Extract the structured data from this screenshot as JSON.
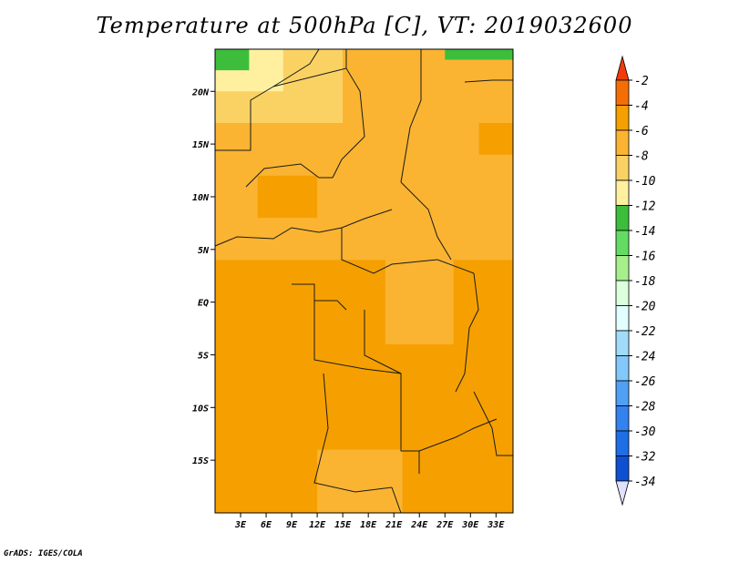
{
  "title": "Temperature at 500hPa [C], VT: 2019032600",
  "credit": "GrADS: IGES/COLA",
  "chart_data": {
    "type": "heatmap",
    "title": "Temperature at 500hPa [C], VT: 2019032600",
    "variable": "Temperature at 500hPa",
    "units": "C",
    "valid_time": "2019032600",
    "lon_range": [
      0,
      35
    ],
    "lat_range": [
      -20,
      24
    ],
    "x_ticks": [
      {
        "value": 3,
        "label": "3E"
      },
      {
        "value": 6,
        "label": "6E"
      },
      {
        "value": 9,
        "label": "9E"
      },
      {
        "value": 12,
        "label": "12E"
      },
      {
        "value": 15,
        "label": "15E"
      },
      {
        "value": 18,
        "label": "18E"
      },
      {
        "value": 21,
        "label": "21E"
      },
      {
        "value": 24,
        "label": "24E"
      },
      {
        "value": 27,
        "label": "27E"
      },
      {
        "value": 30,
        "label": "30E"
      },
      {
        "value": 33,
        "label": "33E"
      }
    ],
    "y_ticks": [
      {
        "value": 20,
        "label": "20N"
      },
      {
        "value": 15,
        "label": "15N"
      },
      {
        "value": 10,
        "label": "10N"
      },
      {
        "value": 5,
        "label": "5N"
      },
      {
        "value": 0,
        "label": "EQ"
      },
      {
        "value": -5,
        "label": "5S"
      },
      {
        "value": -10,
        "label": "10S"
      },
      {
        "value": -15,
        "label": "15S"
      }
    ],
    "colorbar": {
      "levels": [
        -2,
        -4,
        -6,
        -8,
        -10,
        -12,
        -14,
        -16,
        -18,
        -20,
        -22,
        -24,
        -26,
        -28,
        -30,
        -32,
        -34
      ],
      "colors": [
        "#f03c0a",
        "#f56e05",
        "#f5a000",
        "#fab432",
        "#fad264",
        "#fff0a0",
        "#3cbe3c",
        "#64dc64",
        "#a6f08c",
        "#dcffdc",
        "#e1ffff",
        "#a0dcfa",
        "#82c8fa",
        "#50a0f5",
        "#3282f0",
        "#1e6ee6",
        "#0f50d2",
        "#0a0a78",
        "#e0e0ff"
      ]
    },
    "regions": [
      {
        "lon": [
          0,
          35
        ],
        "lat": [
          -20,
          24
        ],
        "value": -6
      },
      {
        "lon": [
          0,
          35
        ],
        "lat": [
          -20,
          4
        ],
        "value": -5
      },
      {
        "lon": [
          0,
          15
        ],
        "lat": [
          17,
          24
        ],
        "value": -8
      },
      {
        "lon": [
          0,
          8
        ],
        "lat": [
          20,
          24
        ],
        "value": -10
      },
      {
        "lon": [
          0,
          4
        ],
        "lat": [
          22,
          24
        ],
        "value": -13
      },
      {
        "lon": [
          27,
          35
        ],
        "lat": [
          23,
          24
        ],
        "value": -13
      },
      {
        "lon": [
          5,
          12
        ],
        "lat": [
          8,
          12
        ],
        "value": -4
      },
      {
        "lon": [
          31,
          35
        ],
        "lat": [
          14,
          17
        ],
        "value": -4
      },
      {
        "lon": [
          20,
          28
        ],
        "lat": [
          -4,
          4
        ],
        "value": -7
      },
      {
        "lon": [
          12,
          22
        ],
        "lat": [
          -20,
          -14
        ],
        "value": -7
      }
    ]
  }
}
